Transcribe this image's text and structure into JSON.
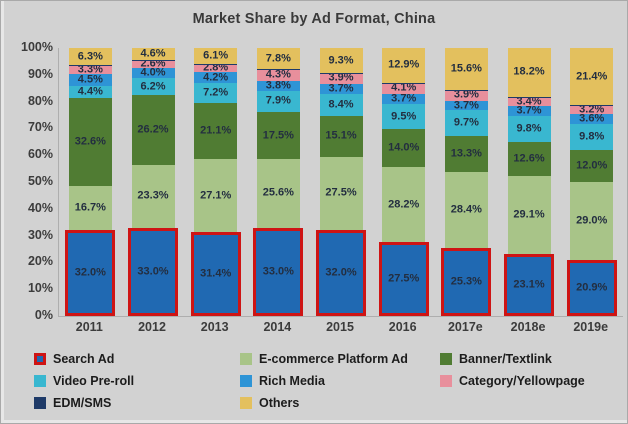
{
  "title": "Market Share by Ad Format, China",
  "colors": {
    "background": "#d2d2d2",
    "axis_line": "#aeaeae",
    "title_text": "#3a3a3a",
    "tick_text": "#3c3c3c",
    "data_label_text": "#232e40",
    "search_highlight_border": "#ce1414"
  },
  "y_axis": {
    "ticks": [
      "100%",
      "90%",
      "80%",
      "70%",
      "60%",
      "50%",
      "40%",
      "30%",
      "20%",
      "10%",
      "0%"
    ]
  },
  "chart_data": {
    "type": "bar",
    "stacked": true,
    "title": "Market Share by Ad Format, China",
    "categories": [
      "2011",
      "2012",
      "2013",
      "2014",
      "2015",
      "2016",
      "2017e",
      "2018e",
      "2019e"
    ],
    "series": [
      {
        "name": "Search Ad",
        "color": "#2069b2",
        "highlight_border": "#ce1414",
        "values": [
          32.0,
          33.0,
          31.4,
          33.0,
          32.0,
          27.5,
          25.3,
          23.1,
          20.9
        ]
      },
      {
        "name": "E-commerce Platform Ad",
        "color": "#a8c488",
        "values": [
          16.7,
          23.3,
          27.1,
          25.6,
          27.5,
          28.2,
          28.4,
          29.1,
          29.0
        ]
      },
      {
        "name": "Banner/Textlink",
        "color": "#507c33",
        "values": [
          32.6,
          26.2,
          21.1,
          17.5,
          15.1,
          14.0,
          13.3,
          12.6,
          12.0
        ]
      },
      {
        "name": "Video Pre-roll",
        "color": "#39b7d0",
        "values": [
          4.4,
          6.2,
          7.2,
          7.9,
          8.4,
          9.5,
          9.7,
          9.8,
          9.8
        ]
      },
      {
        "name": "Rich Media",
        "color": "#2e94d6",
        "values": [
          4.5,
          4.0,
          4.2,
          3.8,
          3.7,
          3.7,
          3.7,
          3.7,
          3.6
        ]
      },
      {
        "name": "Category/Yellowpage",
        "color": "#e88f9c",
        "values": [
          3.3,
          2.6,
          2.8,
          4.3,
          3.9,
          4.1,
          3.9,
          3.4,
          3.2
        ]
      },
      {
        "name": "EDM/SMS",
        "color": "#1e3a68",
        "label_hidden": true,
        "values": [
          0.2,
          0.1,
          0.1,
          0.1,
          0.1,
          0.1,
          0.1,
          0.1,
          0.1
        ]
      },
      {
        "name": "Others",
        "color": "#e3c05e",
        "values": [
          6.3,
          4.6,
          6.1,
          7.8,
          9.3,
          12.9,
          15.6,
          18.2,
          21.4
        ]
      }
    ],
    "ylim": [
      0,
      100
    ],
    "grid": false,
    "legend_position": "bottom",
    "label_format": "{value}%"
  }
}
